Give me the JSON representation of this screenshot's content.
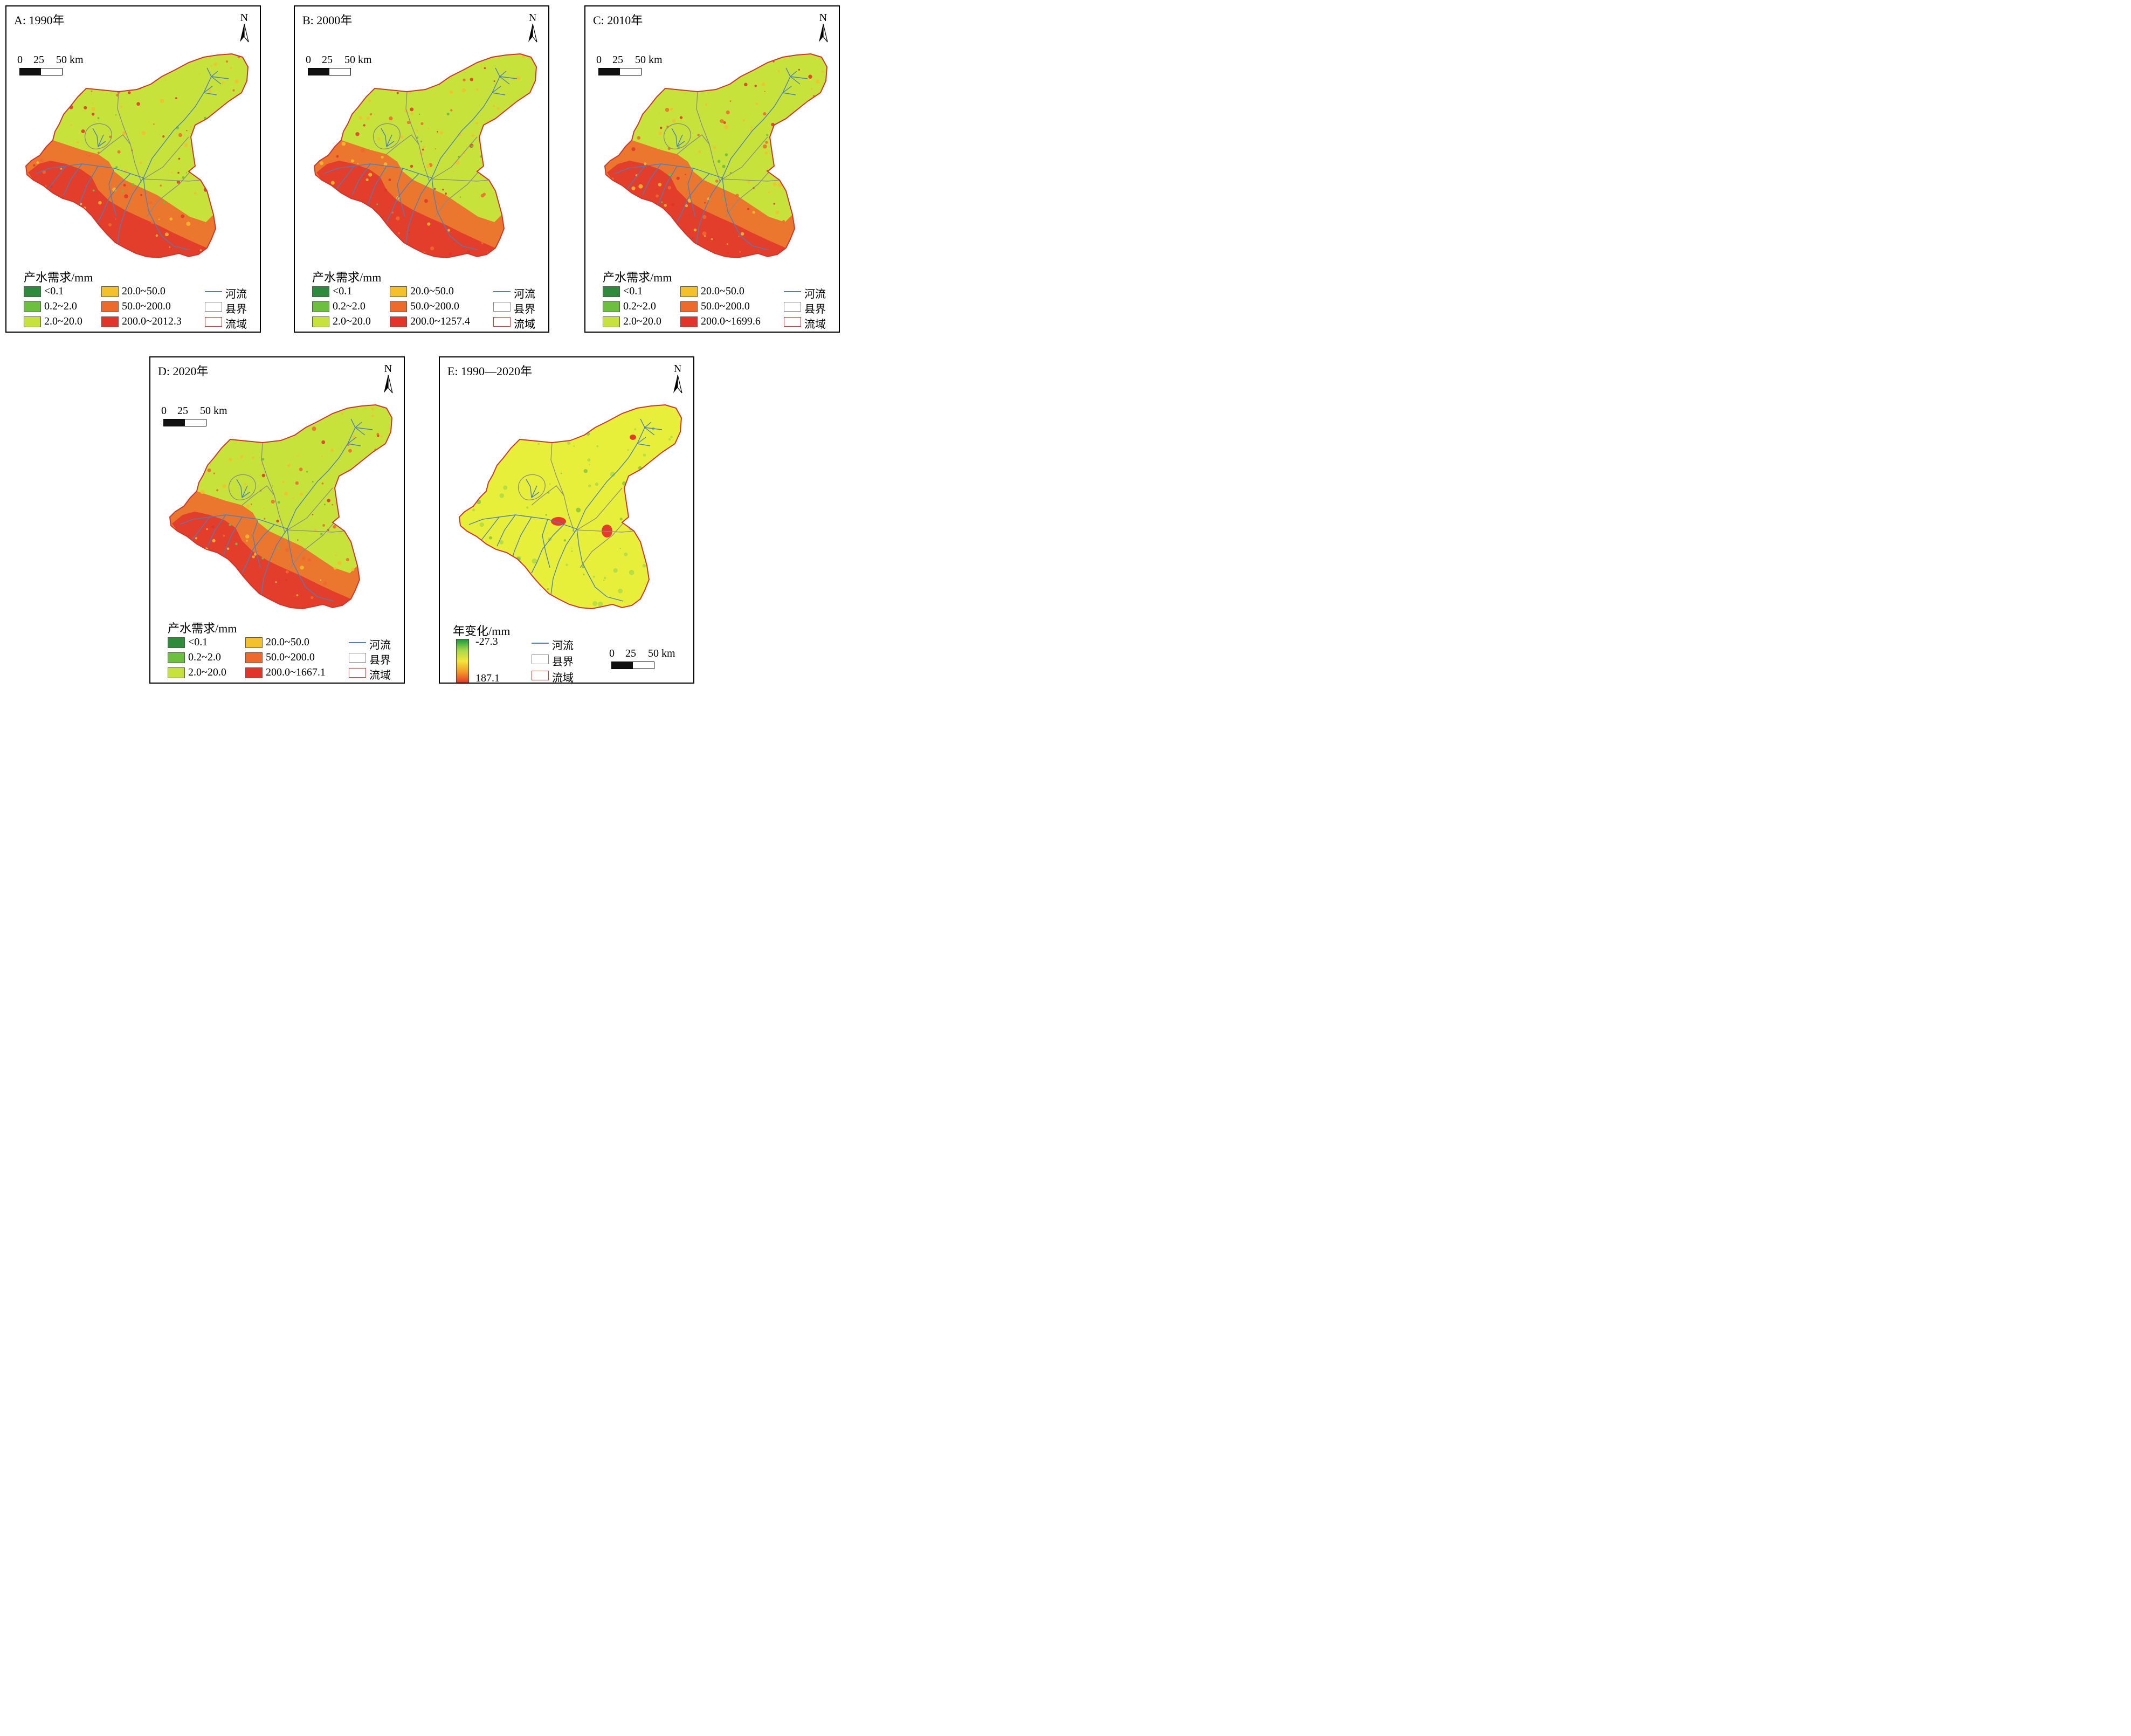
{
  "panels": [
    {
      "title": "A: 1990年",
      "legend": {
        "title": "产水需求/mm",
        "classes": [
          "<0.1",
          "0.2~2.0",
          "2.0~20.0",
          "20.0~50.0",
          "50.0~200.0",
          "200.0~2012.3"
        ]
      }
    },
    {
      "title": "B: 2000年",
      "legend": {
        "title": "产水需求/mm",
        "classes": [
          "<0.1",
          "0.2~2.0",
          "2.0~20.0",
          "20.0~50.0",
          "50.0~200.0",
          "200.0~1257.4"
        ]
      }
    },
    {
      "title": "C: 2010年",
      "legend": {
        "title": "产水需求/mm",
        "classes": [
          "<0.1",
          "0.2~2.0",
          "2.0~20.0",
          "20.0~50.0",
          "50.0~200.0",
          "200.0~1699.6"
        ]
      }
    },
    {
      "title": "D: 2020年",
      "legend": {
        "title": "产水需求/mm",
        "classes": [
          "<0.1",
          "0.2~2.0",
          "2.0~20.0",
          "20.0~50.0",
          "50.0~200.0",
          "200.0~1667.1"
        ]
      }
    },
    {
      "title": "E: 1990—2020年",
      "legend": {
        "title": "年变化/mm",
        "max_label": "-27.3",
        "min_label": "187.1"
      }
    }
  ],
  "class_colors": [
    "#2e8b3c",
    "#6cbf3f",
    "#c8e23c",
    "#f4c02c",
    "#ee6a2c",
    "#e2342a"
  ],
  "north_label": "N",
  "scale": {
    "ticks": [
      "0",
      "25",
      "50 km"
    ]
  },
  "line_legend": {
    "river": "河流",
    "county": "县界",
    "basin": "流域"
  },
  "colors": {
    "river": "#4a7fc1",
    "county": "#8a8a8a",
    "basin": "#d0342a"
  }
}
